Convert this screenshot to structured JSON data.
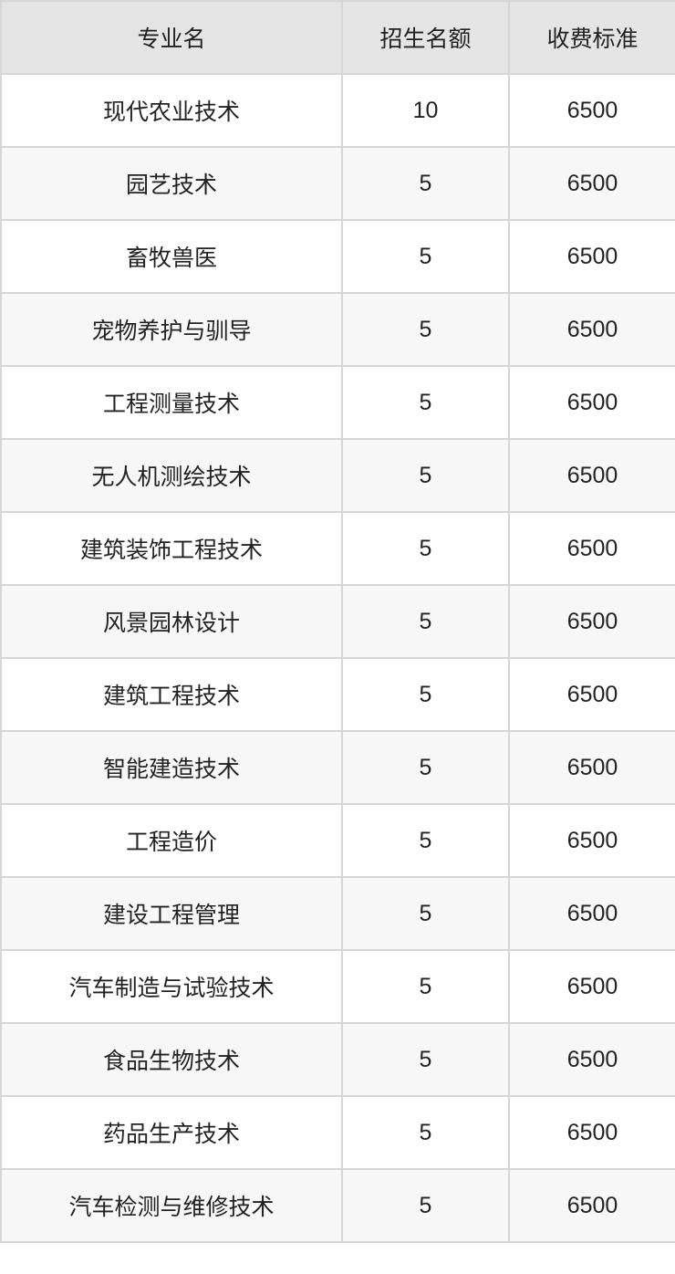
{
  "table": {
    "headers": [
      "专业名",
      "招生名额",
      "收费标准"
    ],
    "rows": [
      [
        "现代农业技术",
        "10",
        "6500"
      ],
      [
        "园艺技术",
        "5",
        "6500"
      ],
      [
        "畜牧兽医",
        "5",
        "6500"
      ],
      [
        "宠物养护与驯导",
        "5",
        "6500"
      ],
      [
        "工程测量技术",
        "5",
        "6500"
      ],
      [
        "无人机测绘技术",
        "5",
        "6500"
      ],
      [
        "建筑装饰工程技术",
        "5",
        "6500"
      ],
      [
        "风景园林设计",
        "5",
        "6500"
      ],
      [
        "建筑工程技术",
        "5",
        "6500"
      ],
      [
        "智能建造技术",
        "5",
        "6500"
      ],
      [
        "工程造价",
        "5",
        "6500"
      ],
      [
        "建设工程管理",
        "5",
        "6500"
      ],
      [
        "汽车制造与试验技术",
        "5",
        "6500"
      ],
      [
        "食品生物技术",
        "5",
        "6500"
      ],
      [
        "药品生产技术",
        "5",
        "6500"
      ],
      [
        "汽车检测与维修技术",
        "5",
        "6500"
      ]
    ]
  }
}
